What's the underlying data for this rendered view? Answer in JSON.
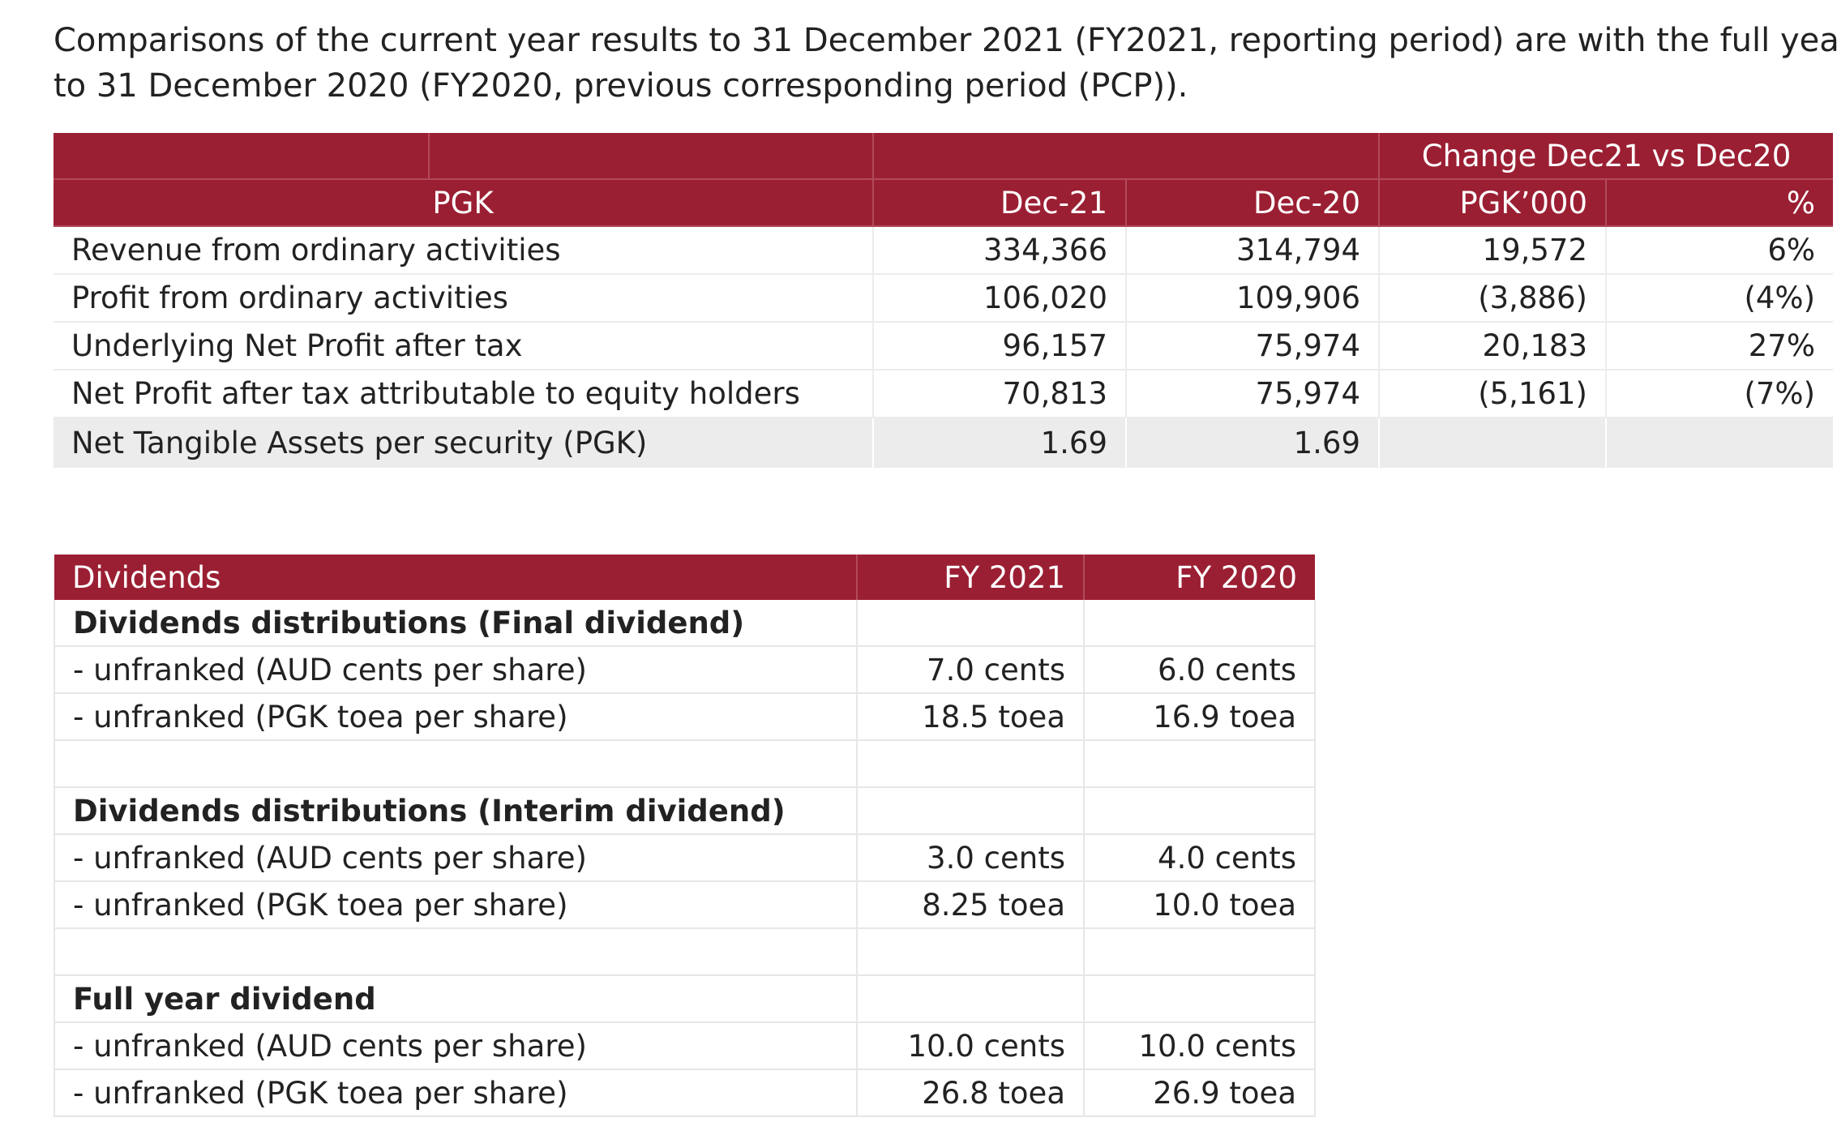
{
  "intro": {
    "line1": "Comparisons of the current year results to 31 December 2021 (FY2021, reporting period) are with the full year",
    "line2": "to 31 December 2020 (FY2020, previous corresponding period (PCP))."
  },
  "results_table": {
    "group_header": "Change Dec21 vs Dec20",
    "headers": [
      "PGK",
      "Dec-21",
      "Dec-20",
      "PGK’000",
      "%"
    ],
    "rows": [
      {
        "label": "Revenue from ordinary activities",
        "dec21": "334,366",
        "dec20": "314,794",
        "change": "19,572",
        "pct": "6%"
      },
      {
        "label": "Profit from ordinary activities",
        "dec21": "106,020",
        "dec20": "109,906",
        "change": "(3,886)",
        "pct": "(4%)"
      },
      {
        "label": "Underlying Net Profit after tax",
        "dec21": "96,157",
        "dec20": "75,974",
        "change": "20,183",
        "pct": "27%"
      },
      {
        "label": "Net Profit after tax attributable to equity holders",
        "dec21": "70,813",
        "dec20": "75,974",
        "change": "(5,161)",
        "pct": "(7%)"
      },
      {
        "label": "Net Tangible Assets per security (PGK)",
        "dec21": "1.69",
        "dec20": "1.69",
        "change": "",
        "pct": ""
      }
    ]
  },
  "dividends_table": {
    "headers": [
      "Dividends",
      "FY 2021",
      "FY 2020"
    ],
    "rows": [
      {
        "label": "Dividends distributions (Final dividend)",
        "fy2021": "",
        "fy2020": "",
        "bold": true
      },
      {
        "label": "- unfranked (AUD cents per share)",
        "fy2021": "7.0 cents",
        "fy2020": "6.0 cents"
      },
      {
        "label": "- unfranked (PGK toea per share)",
        "fy2021": "18.5 toea",
        "fy2020": "16.9 toea"
      },
      {
        "label": "",
        "fy2021": "",
        "fy2020": ""
      },
      {
        "label": "Dividends distributions (Interim dividend)",
        "fy2021": "",
        "fy2020": "",
        "bold": true
      },
      {
        "label": "- unfranked (AUD cents per share)",
        "fy2021": "3.0 cents",
        "fy2020": "4.0 cents"
      },
      {
        "label": "- unfranked (PGK toea per share)",
        "fy2021": "8.25 toea",
        "fy2020": "10.0 toea"
      },
      {
        "label": "",
        "fy2021": "",
        "fy2020": ""
      },
      {
        "label": "Full year dividend",
        "fy2021": "",
        "fy2020": "",
        "bold": true
      },
      {
        "label": "- unfranked (AUD cents per share)",
        "fy2021": "10.0 cents",
        "fy2020": "10.0 cents"
      },
      {
        "label": "- unfranked (PGK toea per share)",
        "fy2021": "26.8 toea",
        "fy2020": "26.9 toea"
      }
    ]
  },
  "colors": {
    "header_bg": "#9b1f33",
    "header_text": "#ffffff",
    "shaded_row": "#ececec"
  }
}
